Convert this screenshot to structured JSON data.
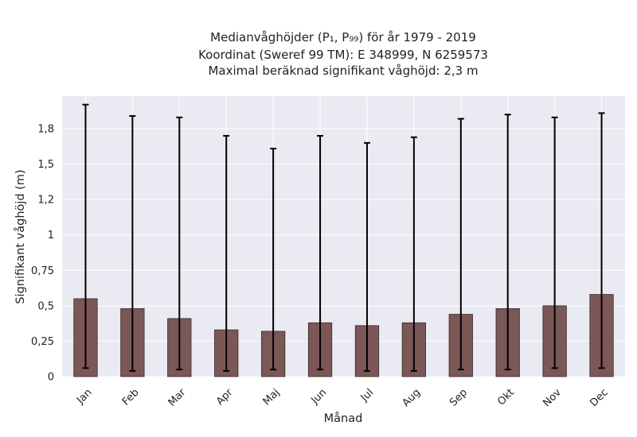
{
  "chart_data": {
    "type": "bar",
    "title_lines": [
      "Medianvåghöjder (P₁, P₉₉) för år 1979 - 2019",
      "Koordinat (Sweref 99 TM): E 348999, N 6259573",
      "Maximal beräknad signifikant våghöjd: 2,3 m"
    ],
    "xlabel": "Månad",
    "ylabel": "Signifikant våghöjd (m)",
    "categories": [
      "Jan",
      "Feb",
      "Mar",
      "Apr",
      "Maj",
      "Jun",
      "Jul",
      "Aug",
      "Sep",
      "Okt",
      "Nov",
      "Dec"
    ],
    "values": [
      0.55,
      0.48,
      0.41,
      0.33,
      0.32,
      0.38,
      0.36,
      0.38,
      0.44,
      0.48,
      0.5,
      0.58
    ],
    "p1": [
      0.06,
      0.04,
      0.05,
      0.04,
      0.05,
      0.05,
      0.04,
      0.04,
      0.05,
      0.05,
      0.06,
      0.06
    ],
    "p99": [
      1.92,
      1.84,
      1.83,
      1.7,
      1.61,
      1.7,
      1.65,
      1.69,
      1.82,
      1.85,
      1.83,
      1.86
    ],
    "yticks": [
      0,
      0.25,
      0.5,
      0.75,
      1,
      1.25,
      1.5,
      1.75
    ],
    "ytick_labels": [
      "0",
      "0,25",
      "0,5",
      "0,75",
      "1",
      "1,2",
      "1,5",
      "1,8"
    ],
    "ylim": [
      0,
      1.98
    ],
    "grid": true,
    "colors": {
      "bar": "#7b5757",
      "bar_edge": "#3a2a2a",
      "error": "#000000",
      "background": "#eaeaf2",
      "grid": "#ffffff"
    }
  }
}
